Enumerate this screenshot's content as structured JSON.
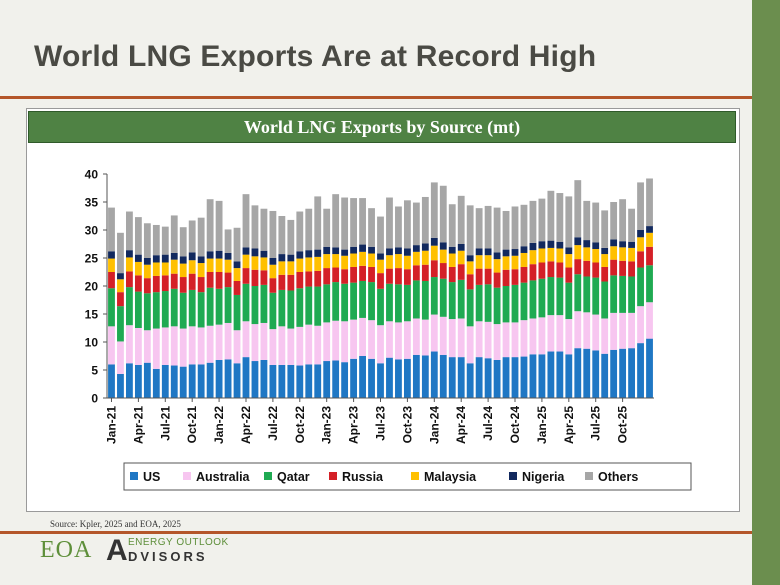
{
  "slide": {
    "title": "World LNG Exports Are at Record High",
    "source": "Source:  Kpler, 2025 and EOA, 2025"
  },
  "logo": {
    "letters": "EOA",
    "mark": "A",
    "top": "ENERGY OUTLOOK",
    "bottom": "DVISORS"
  },
  "colors": {
    "title_rule": "#b4562a",
    "side_bar": "#6b8e4e",
    "banner": "#4f8244"
  },
  "chart_data": {
    "type": "bar",
    "stacked": true,
    "title": "World LNG Exports by Source (mt)",
    "ylim": [
      0,
      40
    ],
    "yticks": [
      0,
      5,
      10,
      15,
      20,
      25,
      30,
      35,
      40
    ],
    "grid": false,
    "legend_position": "bottom",
    "x_start": "Jan-21",
    "x_tick_labels": [
      "Jan-21",
      "Apr-21",
      "Jul-21",
      "Oct-21",
      "Jan-22",
      "Apr-22",
      "Jul-22",
      "Oct-22",
      "Jan-23",
      "Apr-23",
      "Jul-23",
      "Oct-23",
      "Jan-24",
      "Apr-24",
      "Jul-24",
      "Oct-24",
      "Jan-25",
      "Apr-25",
      "Jul-25",
      "Oct-25"
    ],
    "series": [
      {
        "name": "US",
        "color": "#1f77c4",
        "values": [
          6.0,
          4.3,
          6.2,
          5.9,
          6.3,
          5.2,
          5.9,
          5.8,
          5.6,
          6.0,
          6.0,
          6.3,
          6.8,
          6.9,
          6.2,
          7.3,
          6.6,
          6.8,
          5.9,
          5.9,
          5.9,
          5.8,
          6.0,
          6.0,
          6.6,
          6.7,
          6.4,
          7.0,
          7.5,
          7.0,
          6.2,
          7.2,
          6.9,
          7.0,
          7.7,
          7.6,
          8.3,
          7.7,
          7.3,
          7.3,
          6.2,
          7.3,
          7.1,
          6.8,
          7.3,
          7.3,
          7.4,
          7.8,
          7.8,
          8.3,
          8.3,
          7.8,
          8.9,
          8.8,
          8.5,
          7.9,
          8.6,
          8.8,
          8.9,
          9.8,
          10.6
        ]
      },
      {
        "name": "Australia",
        "color": "#f7c6f0",
        "values": [
          6.8,
          5.8,
          6.8,
          6.6,
          5.8,
          7.2,
          6.7,
          7.0,
          6.8,
          6.8,
          6.6,
          6.6,
          6.3,
          6.5,
          5.9,
          6.4,
          6.6,
          6.6,
          6.4,
          6.9,
          6.5,
          6.9,
          7.1,
          6.9,
          6.9,
          7.1,
          7.3,
          7.0,
          6.8,
          6.9,
          6.8,
          6.5,
          6.6,
          6.7,
          6.5,
          6.4,
          6.6,
          6.8,
          6.8,
          6.9,
          6.6,
          6.4,
          6.5,
          6.4,
          6.2,
          6.2,
          6.5,
          6.4,
          6.6,
          6.5,
          6.5,
          6.3,
          6.6,
          6.5,
          6.4,
          6.3,
          6.6,
          6.4,
          6.3,
          6.6,
          6.5
        ]
      },
      {
        "name": "Qatar",
        "color": "#1faa52",
        "values": [
          6.8,
          6.3,
          6.8,
          6.5,
          6.6,
          6.5,
          6.5,
          6.7,
          6.4,
          6.5,
          6.3,
          6.8,
          6.4,
          6.4,
          6.3,
          6.7,
          6.8,
          6.8,
          6.5,
          6.5,
          6.8,
          6.9,
          6.8,
          7.0,
          6.8,
          6.9,
          6.7,
          6.6,
          6.6,
          6.8,
          6.5,
          6.7,
          6.8,
          6.5,
          6.8,
          6.9,
          6.7,
          6.8,
          6.6,
          6.9,
          6.6,
          6.5,
          6.7,
          6.5,
          6.5,
          6.7,
          6.7,
          6.8,
          6.9,
          6.8,
          6.7,
          6.5,
          6.6,
          6.4,
          6.6,
          6.6,
          6.7,
          6.6,
          6.5,
          6.9,
          6.6
        ]
      },
      {
        "name": "Russia",
        "color": "#d42027",
        "values": [
          2.9,
          2.5,
          2.8,
          2.9,
          2.7,
          2.9,
          2.8,
          2.7,
          2.8,
          2.9,
          2.7,
          2.8,
          3.0,
          2.6,
          2.5,
          2.8,
          2.9,
          2.6,
          2.6,
          2.7,
          2.8,
          2.9,
          2.7,
          2.8,
          2.9,
          2.6,
          2.6,
          2.8,
          2.7,
          2.7,
          2.8,
          2.7,
          2.9,
          2.8,
          2.7,
          2.9,
          3.0,
          2.8,
          2.7,
          2.8,
          2.7,
          2.9,
          2.8,
          2.7,
          2.9,
          2.8,
          2.8,
          2.9,
          2.9,
          2.8,
          2.7,
          2.7,
          2.7,
          2.8,
          2.7,
          2.6,
          2.8,
          2.7,
          2.7,
          2.9,
          3.3
        ]
      },
      {
        "name": "Malaysia",
        "color": "#ffc000",
        "values": [
          2.4,
          2.3,
          2.5,
          2.4,
          2.4,
          2.4,
          2.3,
          2.5,
          2.4,
          2.4,
          2.5,
          2.4,
          2.4,
          2.3,
          2.3,
          2.4,
          2.4,
          2.3,
          2.4,
          2.4,
          2.4,
          2.4,
          2.5,
          2.5,
          2.5,
          2.4,
          2.4,
          2.4,
          2.5,
          2.4,
          2.4,
          2.4,
          2.5,
          2.4,
          2.4,
          2.5,
          2.6,
          2.4,
          2.4,
          2.4,
          2.3,
          2.4,
          2.4,
          2.4,
          2.4,
          2.4,
          2.5,
          2.5,
          2.5,
          2.4,
          2.5,
          2.4,
          2.5,
          2.4,
          2.4,
          2.3,
          2.4,
          2.4,
          2.4,
          2.5,
          2.5
        ]
      },
      {
        "name": "Nigeria",
        "color": "#12295e",
        "values": [
          1.3,
          1.1,
          1.3,
          1.3,
          1.2,
          1.3,
          1.4,
          1.2,
          1.3,
          1.4,
          1.2,
          1.3,
          1.4,
          1.2,
          1.2,
          1.3,
          1.4,
          1.2,
          1.2,
          1.3,
          1.2,
          1.3,
          1.3,
          1.3,
          1.3,
          1.2,
          1.1,
          1.2,
          1.3,
          1.2,
          1.1,
          1.2,
          1.2,
          1.3,
          1.2,
          1.3,
          1.4,
          1.3,
          1.2,
          1.2,
          1.1,
          1.2,
          1.2,
          1.2,
          1.2,
          1.2,
          1.2,
          1.3,
          1.3,
          1.3,
          1.2,
          1.2,
          1.4,
          1.3,
          1.2,
          1.1,
          1.2,
          1.1,
          1.1,
          1.3,
          1.2
        ]
      },
      {
        "name": "Others",
        "color": "#a6a6a6",
        "values": [
          7.8,
          7.2,
          6.9,
          6.7,
          6.2,
          5.4,
          5.0,
          6.7,
          5.2,
          5.7,
          6.9,
          9.3,
          8.9,
          4.2,
          6.0,
          9.5,
          7.7,
          7.5,
          8.4,
          6.8,
          6.2,
          7.1,
          7.4,
          9.5,
          6.8,
          9.5,
          9.3,
          8.7,
          8.3,
          6.9,
          6.6,
          9.1,
          7.3,
          8.6,
          7.6,
          8.3,
          9.9,
          10.1,
          7.6,
          8.6,
          8.9,
          7.2,
          7.6,
          8.0,
          6.9,
          7.6,
          7.4,
          7.5,
          7.6,
          8.9,
          8.7,
          9.1,
          10.2,
          7.0,
          7.1,
          6.7,
          6.7,
          7.5,
          5.9,
          8.5,
          8.5
        ]
      }
    ]
  }
}
